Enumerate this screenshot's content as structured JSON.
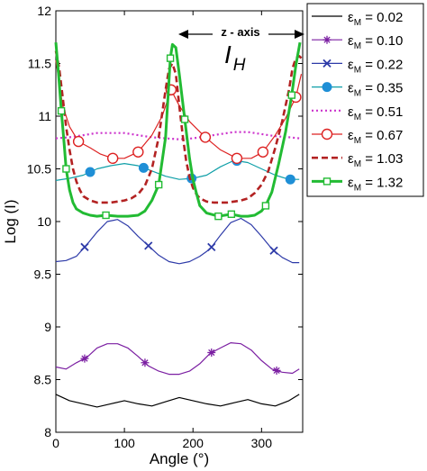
{
  "chart_data": {
    "type": "line",
    "xlabel": "Angle (°)",
    "ylabel": "Log (I)",
    "xlim": [
      0,
      360
    ],
    "ylim": [
      8,
      12
    ],
    "xticks": [
      0,
      100,
      200,
      300
    ],
    "yticks": [
      8,
      8.5,
      9,
      9.5,
      10,
      10.5,
      11,
      11.5,
      12
    ],
    "grid": false,
    "legend_position": "outside-right",
    "annotations": {
      "arrow_label": "z - axis",
      "symbol": "I",
      "subscript": "H"
    },
    "series": [
      {
        "name": "εM = 0.02",
        "legend_label": "ε",
        "legend_sub": "M",
        "legend_value": " = 0.02",
        "color": "#000000",
        "line": "solid",
        "marker": "none",
        "x": [
          0,
          20,
          40,
          60,
          80,
          100,
          120,
          140,
          160,
          180,
          200,
          220,
          240,
          260,
          280,
          300,
          320,
          340,
          355
        ],
        "y": [
          8.36,
          8.3,
          8.27,
          8.24,
          8.27,
          8.3,
          8.27,
          8.25,
          8.29,
          8.33,
          8.3,
          8.27,
          8.25,
          8.28,
          8.31,
          8.27,
          8.25,
          8.3,
          8.36
        ]
      },
      {
        "name": "εM = 0.10",
        "legend_label": "ε",
        "legend_sub": "M",
        "legend_value": " = 0.10",
        "color": "#7b1fa2",
        "line": "solid",
        "marker": "star",
        "marker_x": [
          42,
          130,
          227,
          322
        ],
        "x": [
          0,
          15,
          30,
          45,
          60,
          75,
          90,
          105,
          120,
          135,
          150,
          165,
          180,
          195,
          210,
          225,
          240,
          255,
          270,
          285,
          300,
          315,
          330,
          345,
          355
        ],
        "y": [
          8.62,
          8.6,
          8.66,
          8.71,
          8.8,
          8.84,
          8.84,
          8.8,
          8.72,
          8.63,
          8.58,
          8.55,
          8.55,
          8.58,
          8.65,
          8.75,
          8.8,
          8.85,
          8.84,
          8.78,
          8.68,
          8.6,
          8.57,
          8.56,
          8.6
        ]
      },
      {
        "name": "εM = 0.22",
        "legend_label": "ε",
        "legend_sub": "M",
        "legend_value": " = 0.22",
        "color": "#2d3aa8",
        "line": "solid",
        "marker": "x",
        "marker_x": [
          42,
          135,
          227,
          318
        ],
        "x": [
          0,
          15,
          30,
          45,
          60,
          75,
          90,
          105,
          120,
          135,
          150,
          165,
          180,
          195,
          210,
          225,
          240,
          255,
          270,
          285,
          300,
          315,
          330,
          345,
          355
        ],
        "y": [
          9.62,
          9.63,
          9.67,
          9.78,
          9.9,
          10.0,
          10.02,
          9.96,
          9.86,
          9.77,
          9.68,
          9.62,
          9.6,
          9.62,
          9.67,
          9.74,
          9.87,
          9.99,
          10.03,
          9.97,
          9.86,
          9.74,
          9.66,
          9.61,
          9.61
        ]
      },
      {
        "name": "εM = 0.35",
        "legend_label": "ε",
        "legend_sub": "M",
        "legend_value": " = 0.35",
        "color": "#0f9fa8",
        "line": "solid",
        "marker": "dot",
        "marker_x": [
          50,
          128,
          198,
          264,
          342
        ],
        "x": [
          0,
          20,
          40,
          60,
          80,
          100,
          120,
          140,
          160,
          180,
          200,
          220,
          240,
          260,
          280,
          300,
          320,
          340,
          355
        ],
        "y": [
          10.39,
          10.41,
          10.44,
          10.5,
          10.53,
          10.55,
          10.53,
          10.48,
          10.43,
          10.4,
          10.41,
          10.44,
          10.52,
          10.58,
          10.56,
          10.5,
          10.44,
          10.4,
          10.4
        ]
      },
      {
        "name": "εM = 0.51",
        "legend_label": "ε",
        "legend_sub": "M",
        "legend_value": " = 0.51",
        "color": "#cc33cc",
        "line": "dotted",
        "marker": "none",
        "x": [
          0,
          20,
          40,
          60,
          80,
          100,
          120,
          140,
          160,
          180,
          200,
          220,
          240,
          260,
          280,
          300,
          320,
          340,
          355
        ],
        "y": [
          10.79,
          10.8,
          10.82,
          10.84,
          10.84,
          10.84,
          10.82,
          10.8,
          10.79,
          10.78,
          10.79,
          10.81,
          10.83,
          10.85,
          10.85,
          10.83,
          10.81,
          10.8,
          10.79
        ]
      },
      {
        "name": "εM = 0.67",
        "legend_label": "ε",
        "legend_sub": "M",
        "legend_value": " = 0.67",
        "color": "#dd2222",
        "line": "solid",
        "marker": "circle",
        "marker_x": [
          33,
          83,
          120,
          168,
          218,
          264,
          302,
          350
        ],
        "x": [
          0,
          10,
          20,
          33,
          50,
          65,
          83,
          100,
          120,
          140,
          155,
          168,
          180,
          195,
          218,
          240,
          264,
          285,
          302,
          320,
          335,
          350,
          358
        ],
        "y": [
          11.53,
          11.1,
          10.9,
          10.76,
          10.7,
          10.64,
          10.6,
          10.6,
          10.66,
          10.82,
          11.0,
          11.25,
          11.1,
          10.95,
          10.8,
          10.68,
          10.6,
          10.6,
          10.66,
          10.82,
          10.98,
          11.18,
          11.4
        ]
      },
      {
        "name": "εM = 1.03",
        "legend_label": "ε",
        "legend_sub": "M",
        "legend_value": " = 1.03",
        "color": "#b32222",
        "line": "dashed",
        "marker": "none",
        "x": [
          0,
          5,
          10,
          15,
          20,
          25,
          30,
          35,
          40,
          50,
          60,
          70,
          80,
          90,
          100,
          110,
          120,
          130,
          140,
          150,
          160,
          165,
          170,
          175,
          180,
          185,
          190,
          195,
          200,
          205,
          210,
          220,
          230,
          240,
          250,
          260,
          270,
          280,
          290,
          300,
          310,
          320,
          330,
          340,
          345,
          350,
          355,
          358
        ],
        "y": [
          11.62,
          11.45,
          11.18,
          10.9,
          10.68,
          10.5,
          10.38,
          10.3,
          10.24,
          10.2,
          10.18,
          10.18,
          10.18,
          10.19,
          10.2,
          10.22,
          10.26,
          10.34,
          10.5,
          10.8,
          11.25,
          11.45,
          11.5,
          11.4,
          11.1,
          10.82,
          10.58,
          10.42,
          10.32,
          10.26,
          10.22,
          10.19,
          10.18,
          10.18,
          10.18,
          10.19,
          10.2,
          10.22,
          10.27,
          10.35,
          10.48,
          10.7,
          10.95,
          11.25,
          11.45,
          11.55,
          11.57,
          11.55
        ]
      },
      {
        "name": "εM = 1.32",
        "legend_label": "ε",
        "legend_sub": "M",
        "legend_value": " = 1.32",
        "color": "#22bb33",
        "line": "solid",
        "marker": "square",
        "marker_x": [
          8,
          15,
          73,
          150,
          167,
          188,
          237,
          256,
          306,
          344
        ],
        "x": [
          0,
          4,
          8,
          12,
          15,
          20,
          25,
          30,
          40,
          50,
          60,
          73,
          90,
          105,
          120,
          130,
          140,
          150,
          160,
          167,
          170,
          175,
          180,
          188,
          195,
          200,
          205,
          210,
          220,
          237,
          256,
          270,
          280,
          290,
          300,
          306,
          315,
          325,
          335,
          344,
          350,
          356
        ],
        "y": [
          11.7,
          11.4,
          11.05,
          10.75,
          10.5,
          10.3,
          10.18,
          10.12,
          10.08,
          10.06,
          10.05,
          10.06,
          10.05,
          10.05,
          10.06,
          10.1,
          10.2,
          10.35,
          10.8,
          11.55,
          11.68,
          11.65,
          11.4,
          10.97,
          10.6,
          10.4,
          10.27,
          10.15,
          10.08,
          10.05,
          10.07,
          10.05,
          10.05,
          10.06,
          10.1,
          10.15,
          10.28,
          10.55,
          10.85,
          11.2,
          11.48,
          11.7
        ]
      }
    ]
  }
}
